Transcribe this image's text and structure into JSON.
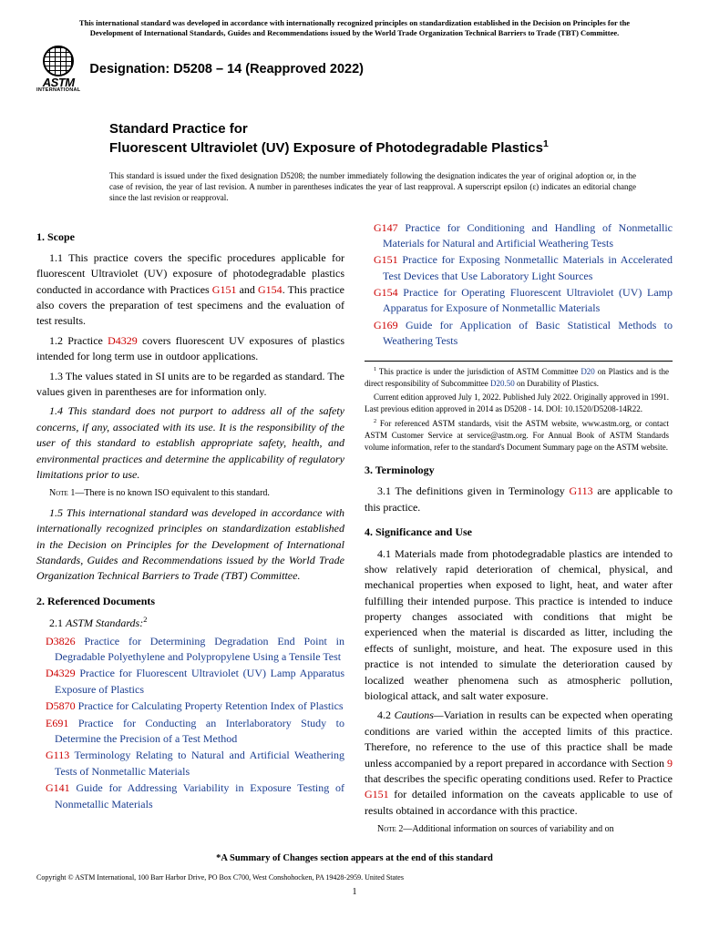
{
  "header_notice": "This international standard was developed in accordance with internationally recognized principles on standardization established in the Decision on Principles for the Development of International Standards, Guides and Recommendations issued by the World Trade Organization Technical Barriers to Trade (TBT) Committee.",
  "logo": {
    "main": "ASTM",
    "sub": "INTERNATIONAL"
  },
  "designation": "Designation: D5208 – 14 (Reapproved 2022)",
  "title_prefix": "Standard Practice for",
  "title_main": "Fluorescent Ultraviolet (UV) Exposure of Photodegradable Plastics",
  "title_sup": "1",
  "issue_note": "This standard is issued under the fixed designation D5208; the number immediately following the designation indicates the year of original adoption or, in the case of revision, the year of last revision. A number in parentheses indicates the year of last reapproval. A superscript epsilon (ε) indicates an editorial change since the last revision or reapproval.",
  "s1": {
    "title": "1. Scope",
    "p11a": "1.1 This practice covers the specific procedures applicable for fluorescent Ultraviolet (UV) exposure of photodegradable plastics conducted in accordance with Practices ",
    "l11a": "G151",
    "p11b": " and ",
    "l11b": "G154",
    "p11c": ". This practice also covers the preparation of test specimens and the evaluation of test results.",
    "p12a": "1.2 Practice ",
    "l12": "D4329",
    "p12b": " covers fluorescent UV exposures of plastics intended for long term use in outdoor applications.",
    "p13": "1.3 The values stated in SI units are to be regarded as standard. The values given in parentheses are for information only.",
    "p14": "1.4 This standard does not purport to address all of the safety concerns, if any, associated with its use. It is the responsibility of the user of this standard to establish appropriate safety, health, and environmental practices and determine the applicability of regulatory limitations prior to use.",
    "note1_label": "Note 1—",
    "note1": "There is no known ISO equivalent to this standard.",
    "p15": "1.5 This international standard was developed in accordance with internationally recognized principles on standardization established in the Decision on Principles for the Development of International Standards, Guides and Recommendations issued by the World Trade Organization Technical Barriers to Trade (TBT) Committee."
  },
  "s2": {
    "title": "2. Referenced Documents",
    "sub": "2.1 ",
    "sub_i": "ASTM Standards:",
    "sub_sup": "2",
    "refs": [
      {
        "c": "D3826",
        "t": " Practice for Determining Degradation End Point in Degradable Polyethylene and Polypropylene Using a Tensile Test"
      },
      {
        "c": "D4329",
        "t": " Practice for Fluorescent Ultraviolet (UV) Lamp Apparatus Exposure of Plastics"
      },
      {
        "c": "D5870",
        "t": " Practice for Calculating Property Retention Index of Plastics"
      },
      {
        "c": "E691",
        "t": " Practice for Conducting an Interlaboratory Study to Determine the Precision of a Test Method"
      },
      {
        "c": "G113",
        "t": " Terminology Relating to Natural and Artificial Weathering Tests of Nonmetallic Materials"
      },
      {
        "c": "G141",
        "t": " Guide for Addressing Variability in Exposure Testing of Nonmetallic Materials"
      },
      {
        "c": "G147",
        "t": " Practice for Conditioning and Handling of Nonmetallic Materials for Natural and Artificial Weathering Tests"
      },
      {
        "c": "G151",
        "t": " Practice for Exposing Nonmetallic Materials in Accelerated Test Devices that Use Laboratory Light Sources"
      },
      {
        "c": "G154",
        "t": " Practice for Operating Fluorescent Ultraviolet (UV) Lamp Apparatus for Exposure of Nonmetallic Materials"
      },
      {
        "c": "G169",
        "t": " Guide for Application of Basic Statistical Methods to Weathering Tests"
      }
    ]
  },
  "s3": {
    "title": "3. Terminology",
    "p31a": "3.1 The definitions given in Terminology ",
    "l31": "G113",
    "p31b": " are applicable to this practice."
  },
  "s4": {
    "title": "4. Significance and Use",
    "p41": "4.1 Materials made from photodegradable plastics are intended to show relatively rapid deterioration of chemical, physical, and mechanical properties when exposed to light, heat, and water after fulfilling their intended purpose. This practice is intended to induce property changes associated with conditions that might be experienced when the material is discarded as litter, including the effects of sunlight, moisture, and heat. The exposure used in this practice is not intended to simulate the deterioration caused by localized weather phenomena such as atmospheric pollution, biological attack, and salt water exposure.",
    "p42a": "4.2 ",
    "p42i": "Cautions—",
    "p42b": "Variation in results can be expected when operating conditions are varied within the accepted limits of this practice. Therefore, no reference to the use of this practice shall be made unless accompanied by a report prepared in accordance with Section ",
    "l42a": "9",
    "p42c": " that describes the specific operating conditions used. Refer to Practice ",
    "l42b": "G151",
    "p42d": " for detailed information on the caveats applicable to use of results obtained in accordance with this practice.",
    "note2_label": "Note 2—",
    "note2": "Additional information on sources of variability and on"
  },
  "footnotes": {
    "f1a": " This practice is under the jurisdiction of ASTM Committee ",
    "f1l1": "D20",
    "f1b": " on Plastics and is the direct responsibility of Subcommittee ",
    "f1l2": "D20.50",
    "f1c": " on Durability of Plastics.",
    "f1d": "Current edition approved July 1, 2022. Published July 2022. Originally approved in 1991. Last previous edition approved in 2014 as D5208 - 14. DOI: 10.1520/D5208-14R22.",
    "f2": " For referenced ASTM standards, visit the ASTM website, www.astm.org, or contact ASTM Customer Service at service@astm.org. For Annual Book of ASTM Standards volume information, refer to the standard's Document Summary page on the ASTM website."
  },
  "bottom_summary": "*A Summary of Changes section appears at the end of this standard",
  "copyright": "Copyright © ASTM International, 100 Barr Harbor Drive, PO Box C700, West Conshohocken, PA 19428-2959. United States",
  "page_num": "1"
}
